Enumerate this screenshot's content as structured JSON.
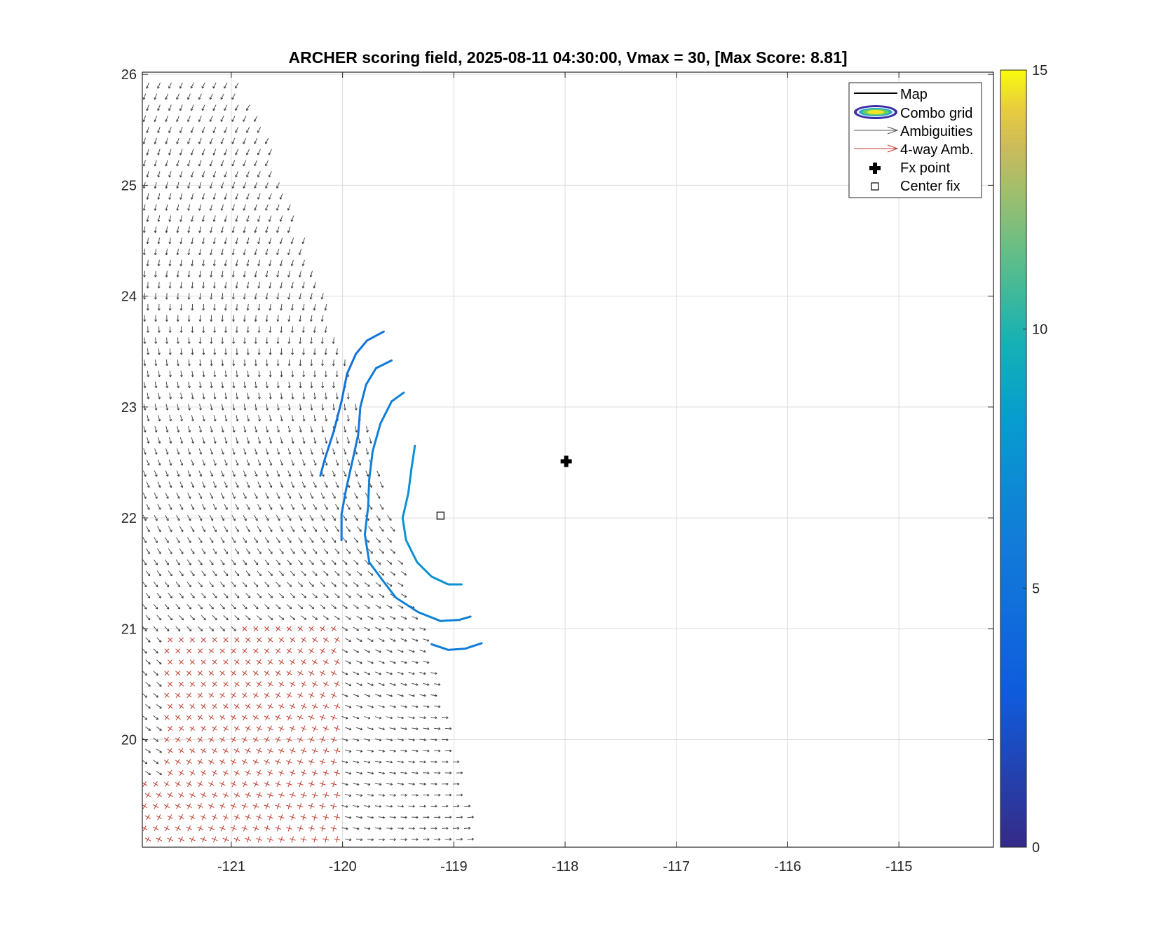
{
  "chart_data": {
    "type": "scatter",
    "title": "ARCHER scoring field, 2025-08-11 04:30:00, Vmax = 30, [Max Score: 8.81]",
    "xlabel": "",
    "ylabel": "",
    "xlim": [
      -121.8,
      -114.15
    ],
    "ylim": [
      19.03,
      26.02
    ],
    "xticks": [
      -121,
      -120,
      -119,
      -118,
      -117,
      -116,
      -115
    ],
    "xtick_labels": [
      "-121",
      "-120",
      "-119",
      "-118",
      "-117",
      "-116",
      "-115"
    ],
    "yticks": [
      20,
      21,
      22,
      23,
      24,
      25,
      26
    ],
    "ytick_labels": [
      "20",
      "21",
      "22",
      "23",
      "24",
      "25",
      "26"
    ],
    "grid": true,
    "legend": {
      "placement": "top-right",
      "entries": [
        "Map",
        "Combo grid",
        "Ambiguities",
        "4-way Amb.",
        "Fx point",
        "Center fix"
      ]
    },
    "colorbar": {
      "min": 0,
      "max": 15,
      "ticks": [
        0,
        5,
        10,
        15
      ],
      "tick_labels": [
        "0",
        "5",
        "10",
        "15"
      ],
      "colormap": "parula"
    },
    "fx_point": {
      "x": -117.99,
      "y": 22.51
    },
    "center_fix": {
      "x": -119.12,
      "y": 22.02
    },
    "contours": [
      {
        "value": 5.0,
        "points": [
          [
            -119.63,
            23.68
          ],
          [
            -119.78,
            23.6
          ],
          [
            -119.88,
            23.48
          ],
          [
            -119.96,
            23.3
          ],
          [
            -120.01,
            23.05
          ],
          [
            -120.08,
            22.78
          ],
          [
            -120.16,
            22.53
          ],
          [
            -120.2,
            22.38
          ]
        ]
      },
      {
        "value": 5.6,
        "points": [
          [
            -119.56,
            23.42
          ],
          [
            -119.7,
            23.35
          ],
          [
            -119.79,
            23.2
          ],
          [
            -119.84,
            23.0
          ],
          [
            -119.86,
            22.75
          ],
          [
            -119.91,
            22.52
          ],
          [
            -119.97,
            22.25
          ],
          [
            -120.01,
            22.03
          ],
          [
            -120.01,
            21.8
          ]
        ]
      },
      {
        "value": 6.3,
        "points": [
          [
            -119.45,
            23.13
          ],
          [
            -119.56,
            23.05
          ],
          [
            -119.66,
            22.85
          ],
          [
            -119.73,
            22.6
          ],
          [
            -119.76,
            22.35
          ],
          [
            -119.77,
            22.1
          ],
          [
            -119.8,
            21.85
          ],
          [
            -119.76,
            21.6
          ],
          [
            -119.65,
            21.45
          ],
          [
            -119.52,
            21.28
          ],
          [
            -119.32,
            21.15
          ],
          [
            -119.12,
            21.07
          ],
          [
            -118.95,
            21.08
          ],
          [
            -118.85,
            21.11
          ]
        ]
      },
      {
        "value": 7.5,
        "points": [
          [
            -119.35,
            22.65
          ],
          [
            -119.38,
            22.45
          ],
          [
            -119.41,
            22.22
          ],
          [
            -119.46,
            22.0
          ],
          [
            -119.43,
            21.8
          ],
          [
            -119.33,
            21.6
          ],
          [
            -119.2,
            21.47
          ],
          [
            -119.05,
            21.4
          ],
          [
            -118.93,
            21.4
          ]
        ]
      },
      {
        "value": 5.8,
        "points": [
          [
            -119.2,
            20.86
          ],
          [
            -119.05,
            20.81
          ],
          [
            -118.9,
            20.82
          ],
          [
            -118.75,
            20.87
          ]
        ]
      }
    ],
    "series": [
      {
        "name": "Ambiguities",
        "type": "vector-field",
        "color": "#444444"
      },
      {
        "name": "4-way Amb.",
        "type": "vector-field",
        "color": "#c0392b"
      }
    ]
  },
  "colors": {
    "ambiguity": "#3a3a3a",
    "four_way": "#c0392b",
    "grid": "#dcdcdc",
    "axis": "#262626"
  }
}
